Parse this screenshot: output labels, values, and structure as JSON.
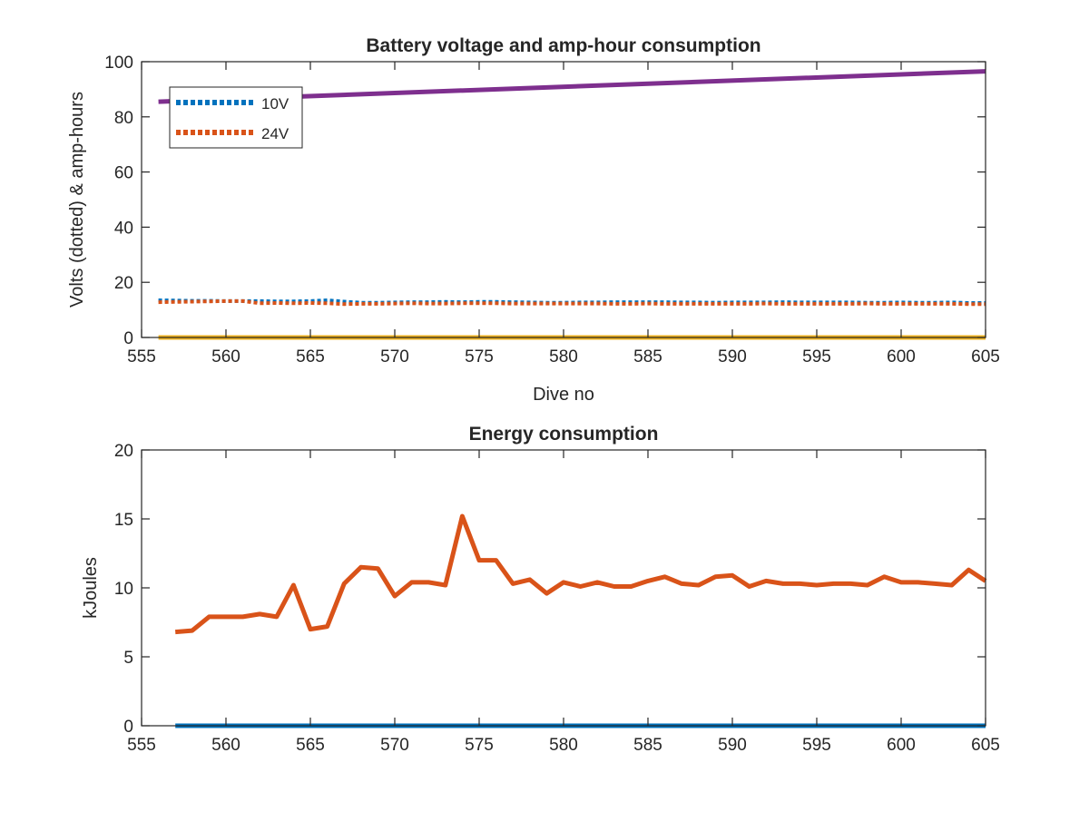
{
  "chart_data": [
    {
      "type": "line",
      "title": "Battery voltage and amp-hour consumption",
      "xlabel": "Dive no",
      "ylabel": "Volts (dotted) & amp-hours",
      "xlim": [
        555,
        605
      ],
      "ylim": [
        0,
        100
      ],
      "xticks": [
        555,
        560,
        565,
        570,
        575,
        580,
        585,
        590,
        595,
        600,
        605
      ],
      "yticks": [
        0,
        20,
        40,
        60,
        80,
        100
      ],
      "grid": false,
      "legend_position": "top-left",
      "series": [
        {
          "name": "10V",
          "color": "#0072BD",
          "style": "dotted",
          "in_legend": true,
          "x": [
            556,
            557,
            558,
            559,
            560,
            561,
            562,
            563,
            564,
            565,
            566,
            567,
            568,
            569,
            570,
            571,
            572,
            573,
            574,
            575,
            576,
            577,
            578,
            579,
            580,
            581,
            582,
            583,
            584,
            585,
            586,
            587,
            588,
            589,
            590,
            591,
            592,
            593,
            594,
            595,
            596,
            597,
            598,
            599,
            600,
            601,
            602,
            603,
            604,
            605
          ],
          "values": [
            13.5,
            13.4,
            13.3,
            13.3,
            13.2,
            13.2,
            13.2,
            13.1,
            13.1,
            13.2,
            13.5,
            13.0,
            12.6,
            12.6,
            12.7,
            12.8,
            12.8,
            12.9,
            12.8,
            12.9,
            12.9,
            12.8,
            12.7,
            12.6,
            12.6,
            12.7,
            12.7,
            12.8,
            12.8,
            12.8,
            12.8,
            12.7,
            12.7,
            12.6,
            12.7,
            12.7,
            12.7,
            12.8,
            12.7,
            12.7,
            12.7,
            12.7,
            12.6,
            12.6,
            12.7,
            12.6,
            12.6,
            12.7,
            12.5,
            12.5
          ]
        },
        {
          "name": "24V",
          "color": "#D95319",
          "style": "dotted",
          "in_legend": true,
          "x": [
            556,
            557,
            558,
            559,
            560,
            561,
            562,
            563,
            564,
            565,
            566,
            567,
            568,
            569,
            570,
            571,
            572,
            573,
            574,
            575,
            576,
            577,
            578,
            579,
            580,
            581,
            582,
            583,
            584,
            585,
            586,
            587,
            588,
            589,
            590,
            591,
            592,
            593,
            594,
            595,
            596,
            597,
            598,
            599,
            600,
            601,
            602,
            603,
            604,
            605
          ],
          "values": [
            12.8,
            12.9,
            13.0,
            13.1,
            13.2,
            13.2,
            12.4,
            12.5,
            12.4,
            12.5,
            12.4,
            12.1,
            12.2,
            12.2,
            12.3,
            12.4,
            12.3,
            12.3,
            12.4,
            12.4,
            12.4,
            12.3,
            12.3,
            12.3,
            12.3,
            12.3,
            12.3,
            12.2,
            12.2,
            12.3,
            12.2,
            12.2,
            12.2,
            12.2,
            12.2,
            12.2,
            12.3,
            12.2,
            12.2,
            12.2,
            12.2,
            12.2,
            12.3,
            12.2,
            12.2,
            12.2,
            12.2,
            12.2,
            12.1,
            12.1
          ]
        },
        {
          "name": "",
          "color": "#7E2F8E",
          "style": "solid",
          "in_legend": false,
          "x": [
            556,
            605
          ],
          "values": [
            85.5,
            96.5
          ]
        },
        {
          "name": "",
          "color": "#EDB120",
          "style": "solid",
          "in_legend": false,
          "x": [
            556,
            605
          ],
          "values": [
            0,
            0
          ]
        }
      ]
    },
    {
      "type": "line",
      "title": "Energy consumption",
      "xlabel": "",
      "ylabel": "kJoules",
      "xlim": [
        555,
        605
      ],
      "ylim": [
        0,
        20
      ],
      "xticks": [
        555,
        560,
        565,
        570,
        575,
        580,
        585,
        590,
        595,
        600,
        605
      ],
      "yticks": [
        0,
        5,
        10,
        15,
        20
      ],
      "grid": false,
      "series": [
        {
          "name": "",
          "color": "#0072BD",
          "style": "solid",
          "in_legend": false,
          "x": [
            557,
            605
          ],
          "values": [
            0,
            0
          ]
        },
        {
          "name": "",
          "color": "#D95319",
          "style": "solid",
          "in_legend": false,
          "x": [
            557,
            558,
            559,
            560,
            561,
            562,
            563,
            564,
            565,
            566,
            567,
            568,
            569,
            570,
            571,
            572,
            573,
            574,
            575,
            576,
            577,
            578,
            579,
            580,
            581,
            582,
            583,
            584,
            585,
            586,
            587,
            588,
            589,
            590,
            591,
            592,
            593,
            594,
            595,
            596,
            597,
            598,
            599,
            600,
            601,
            602,
            603,
            604,
            605
          ],
          "values": [
            6.8,
            6.9,
            7.9,
            7.9,
            7.9,
            8.1,
            7.9,
            10.2,
            7.0,
            7.2,
            10.3,
            11.5,
            11.4,
            9.4,
            10.4,
            10.4,
            10.2,
            15.2,
            12.0,
            12.0,
            10.3,
            10.6,
            9.6,
            10.4,
            10.1,
            10.4,
            10.1,
            10.1,
            10.5,
            10.8,
            10.3,
            10.2,
            10.8,
            10.9,
            10.1,
            10.5,
            10.3,
            10.3,
            10.2,
            10.3,
            10.3,
            10.2,
            10.8,
            10.4,
            10.4,
            10.3,
            10.2,
            11.3,
            10.5
          ]
        }
      ]
    }
  ]
}
